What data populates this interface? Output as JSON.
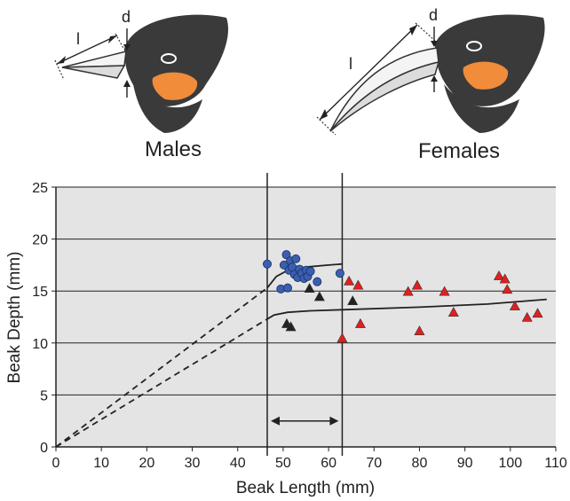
{
  "illustration": {
    "males_label": "Males",
    "females_label": "Females",
    "length_label": "l",
    "depth_label": "d"
  },
  "chart_data": {
    "type": "scatter",
    "xlabel": "Beak Length (mm)",
    "ylabel": "Beak Depth (mm)",
    "xlim": [
      0,
      110
    ],
    "ylim": [
      0,
      25
    ],
    "xticks": [
      0,
      10,
      20,
      30,
      40,
      50,
      60,
      70,
      80,
      90,
      100,
      110
    ],
    "yticks": [
      0,
      5,
      10,
      15,
      20,
      25
    ],
    "grid": "horizontal",
    "background": "#e4e4e4",
    "vertical_lines": [
      46.5,
      63
    ],
    "range_arrow": {
      "x1": 46.5,
      "x2": 63,
      "y": 2.5
    },
    "series": [
      {
        "marker": "circle",
        "color": "#3b5fb0",
        "points": [
          [
            46.5,
            17.6
          ],
          [
            49.5,
            15.2
          ],
          [
            50.2,
            17.5
          ],
          [
            50.7,
            18.5
          ],
          [
            51.0,
            15.3
          ],
          [
            51.3,
            17.0
          ],
          [
            51.6,
            17.9
          ],
          [
            52.0,
            17.3
          ],
          [
            52.5,
            16.6
          ],
          [
            52.8,
            18.1
          ],
          [
            53.2,
            16.3
          ],
          [
            53.6,
            17.1
          ],
          [
            54.1,
            16.7
          ],
          [
            54.6,
            16.2
          ],
          [
            55.1,
            17.0
          ],
          [
            55.4,
            16.4
          ],
          [
            56.0,
            16.9
          ],
          [
            57.5,
            15.9
          ],
          [
            62.5,
            16.7
          ]
        ]
      },
      {
        "marker": "triangle",
        "color": "#222222",
        "points": [
          [
            50.8,
            11.9
          ],
          [
            51.7,
            11.6
          ],
          [
            55.8,
            15.3
          ],
          [
            58.0,
            14.5
          ],
          [
            65.3,
            14.1
          ]
        ]
      },
      {
        "marker": "triangle",
        "color": "#e02020",
        "points": [
          [
            63.0,
            10.5
          ],
          [
            64.5,
            16.0
          ],
          [
            66.5,
            15.6
          ],
          [
            67.0,
            11.9
          ],
          [
            77.5,
            15.0
          ],
          [
            79.5,
            15.6
          ],
          [
            80.0,
            11.2
          ],
          [
            85.5,
            15.0
          ],
          [
            87.5,
            13.0
          ],
          [
            97.5,
            16.5
          ],
          [
            98.8,
            16.2
          ],
          [
            99.3,
            15.2
          ],
          [
            101.0,
            13.6
          ],
          [
            103.7,
            12.5
          ],
          [
            106.0,
            12.9
          ]
        ]
      }
    ],
    "fit_lines": [
      {
        "style": "solid",
        "points": [
          [
            46.5,
            15.3
          ],
          [
            48.5,
            16.4
          ],
          [
            51,
            17.0
          ],
          [
            55,
            17.3
          ],
          [
            60,
            17.5
          ],
          [
            63,
            17.6
          ]
        ]
      },
      {
        "style": "solid",
        "points": [
          [
            46.5,
            12.3
          ],
          [
            48,
            12.7
          ],
          [
            51,
            12.95
          ],
          [
            56,
            13.1
          ],
          [
            63,
            13.2
          ],
          [
            80,
            13.45
          ],
          [
            95,
            13.75
          ],
          [
            108,
            14.2
          ]
        ]
      },
      {
        "style": "dashed",
        "points": [
          [
            0,
            0
          ],
          [
            46.5,
            15.3
          ]
        ]
      },
      {
        "style": "dashed",
        "points": [
          [
            0,
            0
          ],
          [
            46.5,
            12.3
          ]
        ]
      }
    ]
  }
}
